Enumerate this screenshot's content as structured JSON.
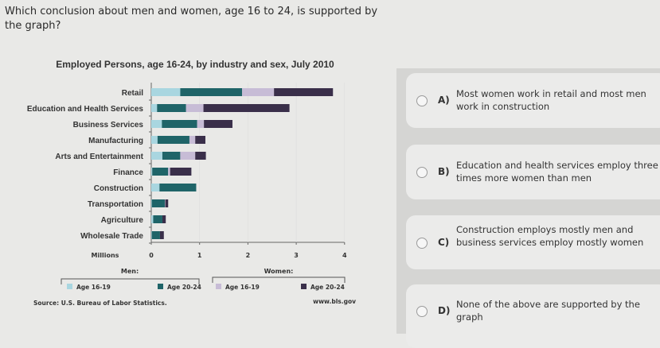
{
  "question": "Which conclusion about men and women, age 16 to 24, is supported by the graph?",
  "options": [
    {
      "letter": "A)",
      "text": "Most women work in retail and most men work in construction"
    },
    {
      "letter": "B)",
      "text": "Education and health services employ three times more women than men"
    },
    {
      "letter": "C)",
      "text": "Construction employs mostly men and business services employ mostly women"
    },
    {
      "letter": "D)",
      "text": "None of the above are supported by the graph"
    }
  ],
  "chart_data": {
    "type": "bar",
    "orientation": "horizontal-stacked",
    "title": "Employed Persons, age 16-24, by industry and sex, July 2010",
    "xlabel": "Millions",
    "xlim": [
      0,
      4
    ],
    "xticks": [
      "0",
      "1",
      "2",
      "3",
      "4"
    ],
    "categories": [
      "Retail",
      "Education and Health Services",
      "Business Services",
      "Manufacturing",
      "Arts and Entertainment",
      "Finance",
      "Construction",
      "Transportation",
      "Agriculture",
      "Wholesale Trade"
    ],
    "series": [
      {
        "name": "Men Age 16-19",
        "group": "Men:",
        "label": "Age 16-19",
        "color": "#a9d6e0",
        "values": [
          0.6,
          0.12,
          0.22,
          0.13,
          0.23,
          0.02,
          0.17,
          0.01,
          0.04,
          0.01
        ]
      },
      {
        "name": "Men Age 20-24",
        "group": "Men:",
        "label": "Age 20-24",
        "color": "#1f6468",
        "values": [
          1.28,
          0.6,
          0.73,
          0.66,
          0.37,
          0.33,
          0.76,
          0.27,
          0.19,
          0.17
        ]
      },
      {
        "name": "Women Age 16-19",
        "group": "Women:",
        "label": "Age 16-19",
        "color": "#c7bcd6",
        "values": [
          0.66,
          0.36,
          0.14,
          0.12,
          0.31,
          0.04,
          0.0,
          0.01,
          0.0,
          0.0
        ]
      },
      {
        "name": "Women Age 20-24",
        "group": "Women:",
        "label": "Age 20-24",
        "color": "#3a2f4a",
        "values": [
          1.22,
          1.78,
          0.59,
          0.21,
          0.22,
          0.44,
          0.0,
          0.06,
          0.07,
          0.08
        ]
      }
    ],
    "legend_groups": [
      "Men:",
      "Women:"
    ],
    "legend_position": "bottom",
    "source": "Source: U.S. Bureau of Labor Statistics.",
    "source_url": "www.bls.gov",
    "grid": true
  }
}
